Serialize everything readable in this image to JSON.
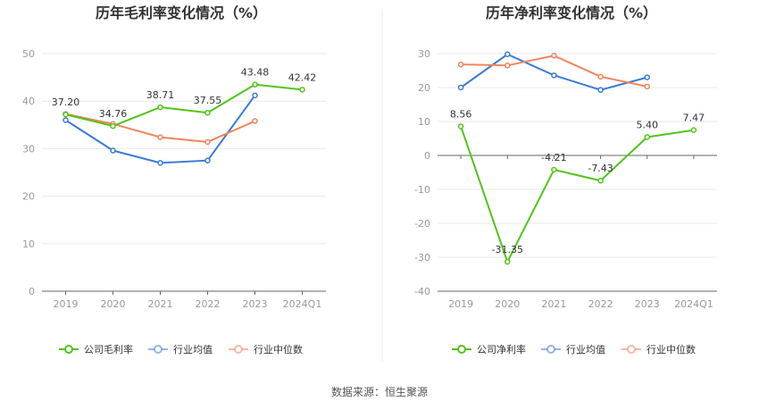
{
  "chart_data": [
    {
      "type": "line",
      "title": "历年毛利率变化情况（%）",
      "categories": [
        "2019",
        "2020",
        "2021",
        "2022",
        "2023",
        "2024Q1"
      ],
      "ylim": [
        0,
        50
      ],
      "yticks": [
        0,
        10,
        20,
        30,
        40,
        50
      ],
      "grid": true,
      "legend_position": "bottom",
      "series": [
        {
          "name": "公司毛利率",
          "color": "#52c41a",
          "values": [
            37.2,
            34.76,
            38.71,
            37.55,
            43.48,
            42.42
          ],
          "labels": [
            "37.20",
            "34.76",
            "38.71",
            "37.55",
            "43.48",
            "42.42"
          ]
        },
        {
          "name": "行业均值",
          "color": "#3a7bd5",
          "values": [
            36.0,
            29.6,
            27.0,
            27.5,
            41.2,
            null
          ]
        },
        {
          "name": "行业中位数",
          "color": "#f0845c",
          "values": [
            37.3,
            35.2,
            32.4,
            31.4,
            35.8,
            null
          ]
        }
      ]
    },
    {
      "type": "line",
      "title": "历年净利率变化情况（%）",
      "categories": [
        "2019",
        "2020",
        "2021",
        "2022",
        "2023",
        "2024Q1"
      ],
      "ylim": [
        -40,
        30
      ],
      "yticks": [
        -40,
        -30,
        -20,
        -10,
        0,
        10,
        20,
        30
      ],
      "grid": true,
      "legend_position": "bottom",
      "series": [
        {
          "name": "公司净利率",
          "color": "#52c41a",
          "values": [
            8.56,
            -31.35,
            -4.21,
            -7.43,
            5.4,
            7.47
          ],
          "labels": [
            "8.56",
            "-31.35",
            "-4.21",
            "-7.43",
            "5.40",
            "7.47"
          ]
        },
        {
          "name": "行业均值",
          "color": "#3a7bd5",
          "values": [
            20.0,
            29.8,
            23.6,
            19.3,
            23.0,
            null
          ]
        },
        {
          "name": "行业中位数",
          "color": "#f0845c",
          "values": [
            26.8,
            26.5,
            29.4,
            23.2,
            20.3,
            null
          ]
        }
      ]
    }
  ],
  "footer": {
    "source": "数据来源：恒生聚源"
  }
}
